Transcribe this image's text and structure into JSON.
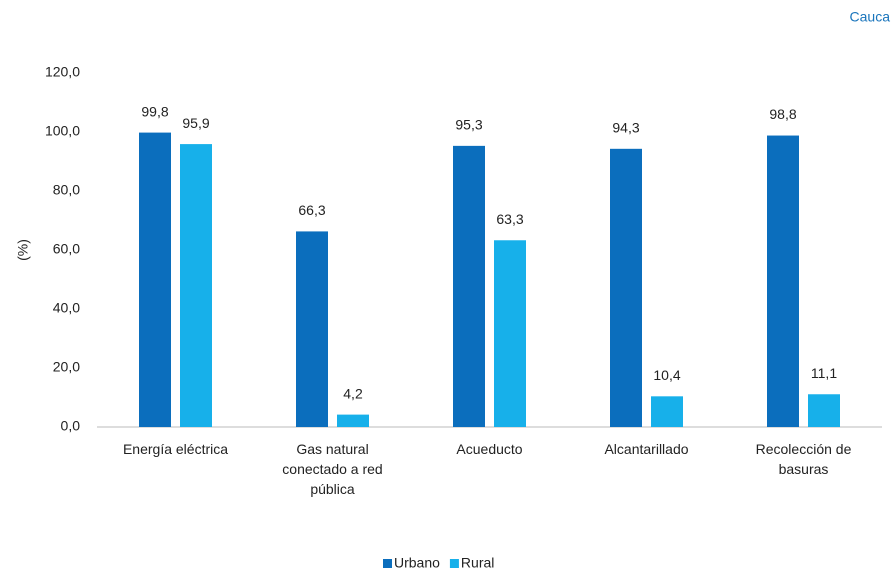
{
  "chart_data": {
    "type": "bar",
    "title": "Cauca",
    "y_label": "(%)",
    "categories": [
      "Energía eléctrica",
      "Gas natural conectado a red pública",
      "Acueducto",
      "Alcantarillado",
      "Recolección de basuras"
    ],
    "series": [
      {
        "name": "Urbano",
        "color": "#0b6ebd",
        "values": [
          99.8,
          66.3,
          95.3,
          94.3,
          98.8
        ],
        "value_labels": [
          "99,8",
          "66,3",
          "95,3",
          "94,3",
          "98,8"
        ]
      },
      {
        "name": "Rural",
        "color": "#17b0ea",
        "values": [
          95.9,
          4.2,
          63.3,
          10.4,
          11.1
        ],
        "value_labels": [
          "95,9",
          "4,2",
          "63,3",
          "10,4",
          "11,1"
        ]
      }
    ],
    "ylim": [
      0,
      120
    ],
    "yticks": [
      {
        "value": 0,
        "label": "0,0"
      },
      {
        "value": 20,
        "label": "20,0"
      },
      {
        "value": 40,
        "label": "40,0"
      },
      {
        "value": 60,
        "label": "60,0"
      },
      {
        "value": 80,
        "label": "80,0"
      },
      {
        "value": 100,
        "label": "100,0"
      },
      {
        "value": 120,
        "label": "120,0"
      }
    ],
    "grid": false,
    "legend": "bottom"
  }
}
